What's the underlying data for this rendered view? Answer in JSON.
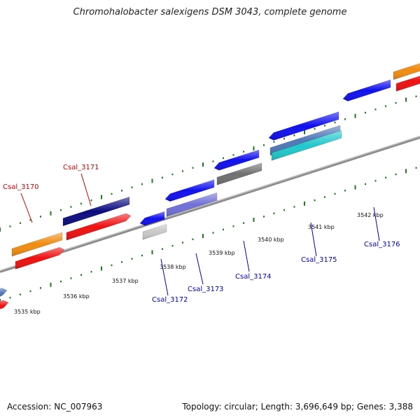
{
  "header": {
    "title": "Chromohalobacter salexigens DSM 3043, complete genome"
  },
  "footer": {
    "accession": "Accession: NC_007963",
    "summary": "Topology: circular; Length: 3,696,649 bp; Genes: 3,388"
  },
  "map": {
    "tick_labels": [
      "3535 kbp",
      "3536 kbp",
      "3537 kbp",
      "3538 kbp",
      "3539 kbp",
      "3540 kbp",
      "3541 kbp",
      "3542 kbp"
    ],
    "gene_labels": [
      {
        "text": "Csal_3170",
        "color": "#cc0000"
      },
      {
        "text": "Csal_3171",
        "color": "#cc0000"
      },
      {
        "text": "Csal_3172",
        "color": "#0000bb"
      },
      {
        "text": "Csal_3173",
        "color": "#0000bb"
      },
      {
        "text": "Csal_3174",
        "color": "#0000bb"
      },
      {
        "text": "Csal_3175",
        "color": "#0000bb"
      },
      {
        "text": "Csal_3176",
        "color": "#0000bb"
      }
    ],
    "colors": {
      "backbone": "#8c8c8c",
      "tick": "#1e7a1e",
      "orange": "#f08c10",
      "red": "#ee1111",
      "navy": "#0c0c80",
      "blue": "#1010ee",
      "violet": "#7070d8",
      "gray": "#707070",
      "light_gray": "#c8c8c8",
      "steel": "#5078b8",
      "cyan": "#20c8cc"
    }
  }
}
